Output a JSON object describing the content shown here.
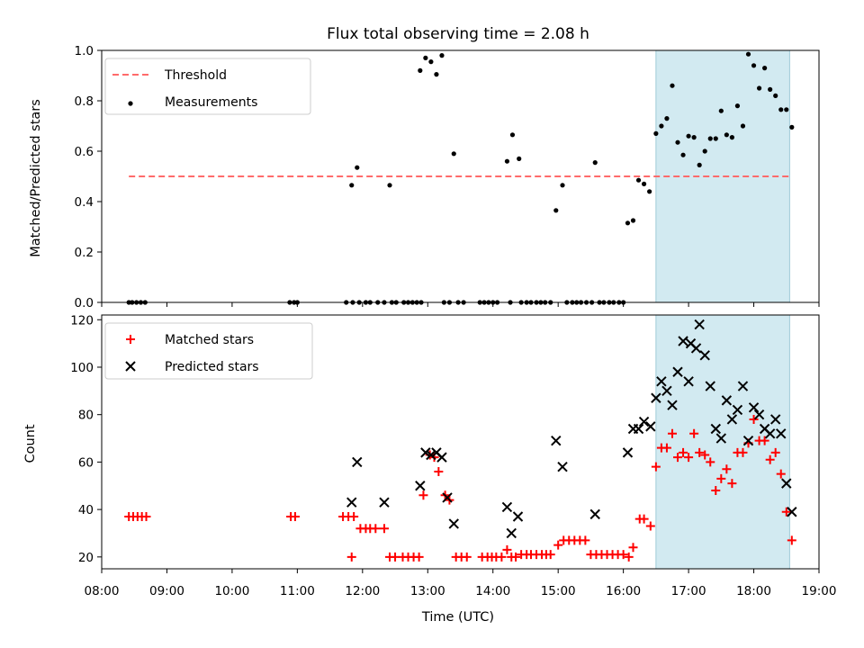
{
  "title": "Flux total observing time = 2.08 h",
  "colors": {
    "threshold": "#ff6b6b",
    "measurement": "#000000",
    "matched": "#ff0000",
    "predicted": "#000000",
    "shade": "#add8e6"
  },
  "chart_data": [
    {
      "type": "scatter",
      "ylabel": "Matched/Predicted stars",
      "xlim": [
        "08:00",
        "19:00"
      ],
      "ylim": [
        0,
        1.0
      ],
      "yticks": [
        0.0,
        0.2,
        0.4,
        0.6,
        0.8,
        1.0
      ],
      "ytick_labels": [
        "0.0",
        "0.2",
        "0.4",
        "0.6",
        "0.8",
        "1.0"
      ],
      "legend_loc": "upper-left",
      "shaded_interval": [
        "16:30",
        "18:33"
      ],
      "threshold": {
        "name": "Threshold",
        "y": 0.5,
        "x_range": [
          "08:25",
          "18:33"
        ]
      },
      "series": [
        {
          "name": "Measurements",
          "points": [
            [
              "08:25",
              0
            ],
            [
              "08:28",
              0
            ],
            [
              "08:32",
              0
            ],
            [
              "08:36",
              0
            ],
            [
              "08:40",
              0
            ],
            [
              "10:53",
              0
            ],
            [
              "10:57",
              0
            ],
            [
              "11:00",
              0
            ],
            [
              "11:45",
              0
            ],
            [
              "11:51",
              0
            ],
            [
              "11:57",
              0
            ],
            [
              "11:50",
              0.465
            ],
            [
              "11:55",
              0.535
            ],
            [
              "12:03",
              0
            ],
            [
              "12:07",
              0
            ],
            [
              "12:14",
              0
            ],
            [
              "12:20",
              0
            ],
            [
              "12:25",
              0.465
            ],
            [
              "12:27",
              0
            ],
            [
              "12:31",
              0
            ],
            [
              "12:38",
              0
            ],
            [
              "12:42",
              0
            ],
            [
              "12:46",
              0
            ],
            [
              "12:50",
              0
            ],
            [
              "12:54",
              0
            ],
            [
              "12:53",
              0.92
            ],
            [
              "12:58",
              0.97
            ],
            [
              "13:03",
              0.955
            ],
            [
              "13:08",
              0.905
            ],
            [
              "13:13",
              0.98
            ],
            [
              "13:15",
              0
            ],
            [
              "13:20",
              0
            ],
            [
              "13:24",
              0.59
            ],
            [
              "13:28",
              0
            ],
            [
              "13:33",
              0
            ],
            [
              "13:48",
              0
            ],
            [
              "13:52",
              0
            ],
            [
              "13:56",
              0
            ],
            [
              "14:00",
              0
            ],
            [
              "14:04",
              0
            ],
            [
              "14:13",
              0.56
            ],
            [
              "14:16",
              0
            ],
            [
              "14:18",
              0.665
            ],
            [
              "14:24",
              0.57
            ],
            [
              "14:26",
              0
            ],
            [
              "14:31",
              0
            ],
            [
              "14:35",
              0
            ],
            [
              "14:40",
              0
            ],
            [
              "14:44",
              0
            ],
            [
              "14:48",
              0
            ],
            [
              "14:53",
              0
            ],
            [
              "14:58",
              0.365
            ],
            [
              "15:04",
              0.465
            ],
            [
              "15:08",
              0
            ],
            [
              "15:13",
              0
            ],
            [
              "15:17",
              0
            ],
            [
              "15:21",
              0
            ],
            [
              "15:26",
              0
            ],
            [
              "15:31",
              0
            ],
            [
              "15:34",
              0.555
            ],
            [
              "15:38",
              0
            ],
            [
              "15:42",
              0
            ],
            [
              "15:47",
              0
            ],
            [
              "15:51",
              0
            ],
            [
              "15:56",
              0
            ],
            [
              "16:00",
              0
            ],
            [
              "16:04",
              0.315
            ],
            [
              "16:09",
              0.325
            ],
            [
              "16:14",
              0.485
            ],
            [
              "16:19",
              0.47
            ],
            [
              "16:24",
              0.44
            ],
            [
              "16:30",
              0.67
            ],
            [
              "16:35",
              0.7
            ],
            [
              "16:40",
              0.73
            ],
            [
              "16:45",
              0.86
            ],
            [
              "16:50",
              0.635
            ],
            [
              "16:55",
              0.585
            ],
            [
              "17:00",
              0.66
            ],
            [
              "17:05",
              0.655
            ],
            [
              "17:10",
              0.545
            ],
            [
              "17:15",
              0.6
            ],
            [
              "17:20",
              0.65
            ],
            [
              "17:25",
              0.65
            ],
            [
              "17:30",
              0.76
            ],
            [
              "17:35",
              0.665
            ],
            [
              "17:40",
              0.655
            ],
            [
              "17:45",
              0.78
            ],
            [
              "17:50",
              0.7
            ],
            [
              "17:55",
              0.985
            ],
            [
              "18:00",
              0.94
            ],
            [
              "18:05",
              0.85
            ],
            [
              "18:10",
              0.93
            ],
            [
              "18:15",
              0.845
            ],
            [
              "18:20",
              0.82
            ],
            [
              "18:25",
              0.765
            ],
            [
              "18:30",
              0.765
            ],
            [
              "18:35",
              0.695
            ]
          ]
        }
      ]
    },
    {
      "type": "scatter",
      "xlabel": "Time (UTC)",
      "ylabel": "Count",
      "xlim": [
        "08:00",
        "19:00"
      ],
      "xtick_labels": [
        "08:00",
        "09:00",
        "10:00",
        "11:00",
        "12:00",
        "13:00",
        "14:00",
        "15:00",
        "16:00",
        "17:00",
        "18:00",
        "19:00"
      ],
      "ylim": [
        15,
        122
      ],
      "yticks": [
        20,
        40,
        60,
        80,
        100,
        120
      ],
      "ytick_labels": [
        "20",
        "40",
        "60",
        "80",
        "100",
        "120"
      ],
      "legend_loc": "upper-left",
      "shaded_interval": [
        "16:30",
        "18:33"
      ],
      "series": [
        {
          "name": "Matched stars",
          "marker": "plus",
          "points": [
            [
              "08:25",
              37
            ],
            [
              "08:29",
              37
            ],
            [
              "08:33",
              37
            ],
            [
              "08:37",
              37
            ],
            [
              "08:41",
              37
            ],
            [
              "10:54",
              37
            ],
            [
              "10:58",
              37
            ],
            [
              "11:42",
              37
            ],
            [
              "11:47",
              37
            ],
            [
              "11:52",
              37
            ],
            [
              "11:50",
              20
            ],
            [
              "11:58",
              32
            ],
            [
              "12:03",
              32
            ],
            [
              "12:07",
              32
            ],
            [
              "12:12",
              32
            ],
            [
              "12:20",
              32
            ],
            [
              "12:25",
              20
            ],
            [
              "12:30",
              20
            ],
            [
              "12:37",
              20
            ],
            [
              "12:42",
              20
            ],
            [
              "12:47",
              20
            ],
            [
              "12:52",
              20
            ],
            [
              "12:56",
              46
            ],
            [
              "13:02",
              63
            ],
            [
              "13:06",
              62
            ],
            [
              "13:10",
              56
            ],
            [
              "13:16",
              46
            ],
            [
              "13:20",
              44
            ],
            [
              "13:26",
              20
            ],
            [
              "13:31",
              20
            ],
            [
              "13:36",
              20
            ],
            [
              "13:50",
              20
            ],
            [
              "13:55",
              20
            ],
            [
              "13:59",
              20
            ],
            [
              "14:03",
              20
            ],
            [
              "14:08",
              20
            ],
            [
              "14:13",
              23
            ],
            [
              "14:17",
              20
            ],
            [
              "14:21",
              20
            ],
            [
              "14:26",
              21
            ],
            [
              "14:31",
              21
            ],
            [
              "14:35",
              21
            ],
            [
              "14:40",
              21
            ],
            [
              "14:45",
              21
            ],
            [
              "14:49",
              21
            ],
            [
              "14:53",
              21
            ],
            [
              "15:00",
              25
            ],
            [
              "15:05",
              27
            ],
            [
              "15:10",
              27
            ],
            [
              "15:15",
              27
            ],
            [
              "15:20",
              27
            ],
            [
              "15:25",
              27
            ],
            [
              "15:30",
              21
            ],
            [
              "15:35",
              21
            ],
            [
              "15:40",
              21
            ],
            [
              "15:45",
              21
            ],
            [
              "15:50",
              21
            ],
            [
              "15:55",
              21
            ],
            [
              "16:00",
              21
            ],
            [
              "16:05",
              20
            ],
            [
              "16:09",
              24
            ],
            [
              "16:15",
              36
            ],
            [
              "16:19",
              36
            ],
            [
              "16:25",
              33
            ],
            [
              "16:30",
              58
            ],
            [
              "16:35",
              66
            ],
            [
              "16:40",
              66
            ],
            [
              "16:45",
              72
            ],
            [
              "16:50",
              62
            ],
            [
              "16:55",
              64
            ],
            [
              "17:00",
              62
            ],
            [
              "17:05",
              72
            ],
            [
              "17:10",
              64
            ],
            [
              "17:15",
              63
            ],
            [
              "17:20",
              60
            ],
            [
              "17:25",
              48
            ],
            [
              "17:30",
              53
            ],
            [
              "17:35",
              57
            ],
            [
              "17:40",
              51
            ],
            [
              "17:45",
              64
            ],
            [
              "17:50",
              64
            ],
            [
              "17:55",
              68
            ],
            [
              "18:00",
              78
            ],
            [
              "18:05",
              69
            ],
            [
              "18:10",
              69
            ],
            [
              "18:15",
              61
            ],
            [
              "18:20",
              64
            ],
            [
              "18:25",
              55
            ],
            [
              "18:30",
              39
            ],
            [
              "18:35",
              27
            ]
          ]
        },
        {
          "name": "Predicted stars",
          "marker": "x",
          "points": [
            [
              "11:50",
              43
            ],
            [
              "11:55",
              60
            ],
            [
              "12:20",
              43
            ],
            [
              "12:53",
              50
            ],
            [
              "12:58",
              64
            ],
            [
              "13:03",
              63
            ],
            [
              "13:08",
              64
            ],
            [
              "13:13",
              62
            ],
            [
              "13:18",
              45
            ],
            [
              "13:24",
              34
            ],
            [
              "14:13",
              41
            ],
            [
              "14:17",
              30
            ],
            [
              "14:23",
              37
            ],
            [
              "14:58",
              69
            ],
            [
              "15:04",
              58
            ],
            [
              "15:34",
              38
            ],
            [
              "16:04",
              64
            ],
            [
              "16:09",
              74
            ],
            [
              "16:14",
              74
            ],
            [
              "16:19",
              77
            ],
            [
              "16:25",
              75
            ],
            [
              "16:30",
              87
            ],
            [
              "16:35",
              94
            ],
            [
              "16:40",
              90
            ],
            [
              "16:45",
              84
            ],
            [
              "16:50",
              98
            ],
            [
              "16:55",
              111
            ],
            [
              "17:00",
              94
            ],
            [
              "17:02",
              110
            ],
            [
              "17:07",
              108
            ],
            [
              "17:10",
              118
            ],
            [
              "17:15",
              105
            ],
            [
              "17:20",
              92
            ],
            [
              "17:25",
              74
            ],
            [
              "17:30",
              70
            ],
            [
              "17:35",
              86
            ],
            [
              "17:40",
              78
            ],
            [
              "17:45",
              82
            ],
            [
              "17:50",
              92
            ],
            [
              "17:55",
              69
            ],
            [
              "18:00",
              83
            ],
            [
              "18:05",
              80
            ],
            [
              "18:10",
              74
            ],
            [
              "18:15",
              72
            ],
            [
              "18:20",
              78
            ],
            [
              "18:25",
              72
            ],
            [
              "18:30",
              51
            ],
            [
              "18:35",
              39
            ]
          ]
        }
      ]
    }
  ]
}
